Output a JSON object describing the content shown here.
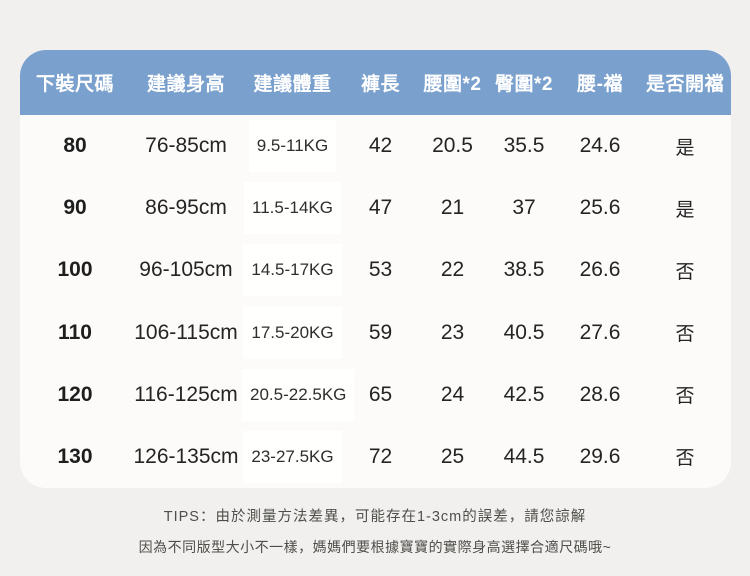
{
  "chart_data": {
    "type": "table",
    "title": "",
    "columns": [
      "下裝尺碼",
      "建議身高",
      "建議體重",
      "褲長",
      "腰圍*2",
      "臀圍*2",
      "腰-襠",
      "是否開襠"
    ],
    "rows": [
      [
        "80",
        "76-85cm",
        "9.5-11KG",
        "42",
        "20.5",
        "35.5",
        "24.6",
        "是"
      ],
      [
        "90",
        "86-95cm",
        "11.5-14KG",
        "47",
        "21",
        "37",
        "25.6",
        "是"
      ],
      [
        "100",
        "96-105cm",
        "14.5-17KG",
        "53",
        "22",
        "38.5",
        "26.6",
        "否"
      ],
      [
        "110",
        "106-115cm",
        "17.5-20KG",
        "59",
        "23",
        "40.5",
        "27.6",
        "否"
      ],
      [
        "120",
        "116-125cm",
        "20.5-22.5KG",
        "65",
        "24",
        "42.5",
        "28.6",
        "否"
      ],
      [
        "130",
        "126-135cm",
        "23-27.5KG",
        "72",
        "25",
        "44.5",
        "29.6",
        "否"
      ]
    ]
  },
  "colors": {
    "page_background": "#f1f0ee",
    "card_background": "#fcfbfa",
    "header_background": "#7aa0cd",
    "header_text": "#ffffff",
    "body_text": "#242424",
    "tips_text": "#4e4e4a"
  },
  "tips": {
    "line1": "TIPS：由於測量方法差異，可能存在1-3cm的誤差，請您諒解",
    "line2": "因為不同版型大小不一樣，媽媽們要根據寶寶的實際身高選擇合適尺碼哦~"
  }
}
